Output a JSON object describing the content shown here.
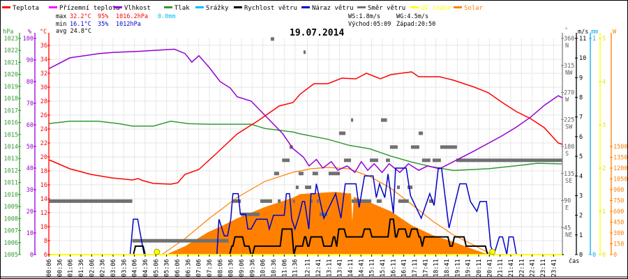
{
  "legend": [
    {
      "label": "Teplota",
      "color": "#ff0000"
    },
    {
      "label": "Přízemní teplota",
      "color": "#ff00ff"
    },
    {
      "label": "Vlhkost",
      "color": "#9400d3"
    },
    {
      "label": "Tlak",
      "color": "#339933"
    },
    {
      "label": "Srážky",
      "color": "#00bfff"
    },
    {
      "label": "Rychlost větru",
      "color": "#000000"
    },
    {
      "label": "Náraz větru",
      "color": "#0000cc"
    },
    {
      "label": "Směr větru",
      "color": "#707070"
    },
    {
      "label": "UV index",
      "color": "#ffff00"
    },
    {
      "label": "Solar",
      "color": "#ff8000"
    }
  ],
  "stats": {
    "max_label": "max",
    "max_temp": "32.2°C",
    "max_hum": "95%",
    "max_press": "1016.2hPa",
    "rain": "0.0mm",
    "min_label": "min",
    "min_temp": "16.1°C",
    "min_hum": "35%",
    "min_press": "1012hPa",
    "avg": "avg 24.8°C",
    "ws": "WS:1.8m/s",
    "wg": "WG:4.5m/s",
    "sunrise": "Východ:05:09",
    "sunset": "Západ:20:50"
  },
  "chart_data": {
    "type": "line",
    "title": "19.07.2014",
    "xlabel": "čas",
    "x_tick_labels": [
      "00:06",
      "00:36",
      "01:06",
      "01:36",
      "02:06",
      "02:36",
      "03:06",
      "03:36",
      "04:06",
      "04:36",
      "05:06",
      "05:36",
      "06:06",
      "06:36",
      "07:06",
      "07:36",
      "08:06",
      "08:36",
      "09:06",
      "09:36",
      "10:06",
      "10:36",
      "11:06",
      "11:36",
      "12:11",
      "12:41",
      "13:11",
      "13:41",
      "14:11",
      "14:41",
      "15:11",
      "15:41",
      "16:11",
      "16:41",
      "17:11",
      "17:41",
      "18:11",
      "18:41",
      "19:11",
      "19:41",
      "20:11",
      "20:41",
      "21:11",
      "21:41",
      "22:11",
      "22:41",
      "23:11",
      "23:41"
    ],
    "x_unit": "hour of day",
    "axes": {
      "pressure": {
        "label": "hPa",
        "range": [
          1005,
          1023
        ],
        "color": "#339933"
      },
      "humidity": {
        "label": "%",
        "range": [
          0,
          100
        ],
        "color": "#9400d3"
      },
      "temperature": {
        "label": "°C",
        "range": [
          6,
          36
        ],
        "color": "#ff0000"
      },
      "direction": {
        "label": "°",
        "range": [
          0,
          360
        ],
        "ticks": [
          [
            45,
            "NE"
          ],
          [
            90,
            "E"
          ],
          [
            135,
            "SE"
          ],
          [
            180,
            "S"
          ],
          [
            225,
            "SW"
          ],
          [
            270,
            "W"
          ],
          [
            315,
            "NW"
          ],
          [
            360,
            "N"
          ]
        ],
        "color": "#707070"
      },
      "wind": {
        "label": "m/s",
        "range": [
          0,
          11
        ],
        "color": "#000000"
      },
      "rain": {
        "label": "mm",
        "range": [
          0,
          1
        ],
        "color": "#00aaee"
      },
      "uv": {
        "label": "",
        "range": [
          0,
          5
        ],
        "color": "#e6e600"
      },
      "solar": {
        "label": "W",
        "range": [
          0,
          1500
        ],
        "step": 150,
        "color": "#ff8000"
      }
    },
    "grid": true,
    "series": {
      "temperature": [
        [
          0.1,
          19.6
        ],
        [
          1.08,
          18.3
        ],
        [
          2.06,
          17.5
        ],
        [
          3.03,
          17.0
        ],
        [
          4.01,
          16.7
        ],
        [
          4.27,
          16.9
        ],
        [
          4.5,
          16.6
        ],
        [
          4.99,
          16.2
        ],
        [
          5.8,
          16.1
        ],
        [
          6.13,
          16.3
        ],
        [
          6.46,
          17.5
        ],
        [
          7.11,
          18.2
        ],
        [
          7.93,
          20.5
        ],
        [
          8.9,
          23.3
        ],
        [
          9.88,
          25.2
        ],
        [
          10.86,
          27.3
        ],
        [
          11.51,
          27.8
        ],
        [
          11.84,
          29.0
        ],
        [
          12.49,
          30.5
        ],
        [
          13.14,
          30.5
        ],
        [
          13.79,
          31.3
        ],
        [
          14.45,
          31.2
        ],
        [
          14.94,
          32.0
        ],
        [
          15.59,
          31.2
        ],
        [
          16.08,
          31.8
        ],
        [
          17.05,
          32.2
        ],
        [
          17.38,
          31.5
        ],
        [
          18.36,
          31.5
        ],
        [
          19.01,
          31.0
        ],
        [
          19.99,
          30.0
        ],
        [
          20.64,
          29.2
        ],
        [
          21.29,
          27.8
        ],
        [
          21.95,
          26.5
        ],
        [
          22.6,
          25.5
        ],
        [
          23.25,
          24.2
        ],
        [
          23.9,
          22.0
        ],
        [
          24.1,
          21.8
        ]
      ],
      "humidity": [
        [
          0.1,
          86
        ],
        [
          0.5,
          88
        ],
        [
          1.08,
          91
        ],
        [
          2.47,
          93
        ],
        [
          3.13,
          93.5
        ],
        [
          4.27,
          94
        ],
        [
          5.97,
          95
        ],
        [
          6.46,
          93
        ],
        [
          6.78,
          89
        ],
        [
          7.11,
          92
        ],
        [
          7.6,
          86.5
        ],
        [
          8.1,
          80
        ],
        [
          8.58,
          77
        ],
        [
          8.9,
          73
        ],
        [
          9.55,
          71
        ],
        [
          10.04,
          66
        ],
        [
          10.53,
          61
        ],
        [
          11.02,
          56
        ],
        [
          11.51,
          49
        ],
        [
          12.0,
          45
        ],
        [
          12.26,
          41
        ],
        [
          12.6,
          44
        ],
        [
          12.9,
          40
        ],
        [
          13.3,
          43
        ],
        [
          13.6,
          39
        ],
        [
          14.04,
          41
        ],
        [
          14.4,
          38
        ],
        [
          14.7,
          43
        ],
        [
          15.0,
          39
        ],
        [
          15.3,
          42
        ],
        [
          15.67,
          38
        ],
        [
          16.0,
          42
        ],
        [
          16.5,
          38
        ],
        [
          16.9,
          42
        ],
        [
          17.38,
          39
        ],
        [
          17.8,
          41
        ],
        [
          18.36,
          39.7
        ],
        [
          19.01,
          43
        ],
        [
          19.99,
          48
        ],
        [
          21.29,
          55
        ],
        [
          21.95,
          59
        ],
        [
          22.6,
          63.5
        ],
        [
          23.25,
          69
        ],
        [
          23.9,
          73.5
        ],
        [
          24.1,
          72.5
        ]
      ],
      "pressure": [
        [
          0.1,
          1015.9
        ],
        [
          1.08,
          1016.1
        ],
        [
          2.4,
          1016.1
        ],
        [
          3.36,
          1015.9
        ],
        [
          4.01,
          1015.7
        ],
        [
          4.99,
          1015.7
        ],
        [
          5.8,
          1016.1
        ],
        [
          6.62,
          1015.9
        ],
        [
          7.6,
          1015.85
        ],
        [
          9.55,
          1015.85
        ],
        [
          10.2,
          1015.5
        ],
        [
          11.51,
          1015.2
        ],
        [
          11.84,
          1015.05
        ],
        [
          13.14,
          1014.6
        ],
        [
          14.12,
          1014.1
        ],
        [
          15.1,
          1013.8
        ],
        [
          16.08,
          1013.2
        ],
        [
          17.05,
          1012.7
        ],
        [
          18.03,
          1012.3
        ],
        [
          19.01,
          1012.0
        ],
        [
          20.64,
          1012.15
        ],
        [
          21.95,
          1012.4
        ],
        [
          22.93,
          1012.6
        ],
        [
          24.1,
          1012.55
        ]
      ],
      "wind_speed": [
        [
          0.1,
          0
        ],
        [
          3.9,
          0
        ],
        [
          4.1,
          0.43
        ],
        [
          4.55,
          0
        ],
        [
          8.5,
          0
        ],
        [
          8.6,
          0.43
        ],
        [
          8.75,
          0.9
        ],
        [
          9.2,
          0.43
        ],
        [
          9.5,
          0
        ],
        [
          9.67,
          0.43
        ],
        [
          10.96,
          1.3
        ],
        [
          11.5,
          0
        ],
        [
          11.6,
          0.43
        ],
        [
          12.0,
          0.9
        ],
        [
          12.15,
          0.43
        ],
        [
          12.3,
          0.9
        ],
        [
          12.9,
          0.43
        ],
        [
          13.35,
          0.9
        ],
        [
          13.5,
          0.43
        ],
        [
          13.6,
          1.3
        ],
        [
          13.95,
          0.9
        ],
        [
          14.8,
          1.3
        ],
        [
          15.15,
          0.9
        ],
        [
          16.0,
          1.8
        ],
        [
          16.25,
          0.9
        ],
        [
          16.4,
          1.3
        ],
        [
          16.8,
          0.9
        ],
        [
          17.0,
          1.3
        ],
        [
          17.35,
          0.9
        ],
        [
          17.5,
          0.43
        ],
        [
          17.6,
          0.9
        ],
        [
          18.8,
          0.43
        ],
        [
          19.0,
          0.9
        ],
        [
          19.55,
          0.43
        ],
        [
          20.55,
          0
        ],
        [
          24.1,
          0
        ]
      ],
      "wind_gust": [
        [
          0.1,
          0
        ],
        [
          3.9,
          0
        ],
        [
          4.05,
          1.8
        ],
        [
          4.25,
          1.8
        ],
        [
          4.55,
          0
        ],
        [
          7.95,
          0
        ],
        [
          8.05,
          1.8
        ],
        [
          8.3,
          0.95
        ],
        [
          8.45,
          0.95
        ],
        [
          8.6,
          1.8
        ],
        [
          8.7,
          3.1
        ],
        [
          8.95,
          3.1
        ],
        [
          9.05,
          2.05
        ],
        [
          9.3,
          2.05
        ],
        [
          9.4,
          1.3
        ],
        [
          9.55,
          1.3
        ],
        [
          9.8,
          1.8
        ],
        [
          10.3,
          1.8
        ],
        [
          10.4,
          1.3
        ],
        [
          10.6,
          2.0
        ],
        [
          11.1,
          2.0
        ],
        [
          11.2,
          3.1
        ],
        [
          11.35,
          3.1
        ],
        [
          11.45,
          1.8
        ],
        [
          11.6,
          1.3
        ],
        [
          11.8,
          2.0
        ],
        [
          11.95,
          2.7
        ],
        [
          12.05,
          2.7
        ],
        [
          12.25,
          1.3
        ],
        [
          12.35,
          3.1
        ],
        [
          12.55,
          3.1
        ],
        [
          12.6,
          3.6
        ],
        [
          12.95,
          1.85
        ],
        [
          13.5,
          3.1
        ],
        [
          13.75,
          1.85
        ],
        [
          13.95,
          3.6
        ],
        [
          14.45,
          3.6
        ],
        [
          14.6,
          2.4
        ],
        [
          14.85,
          4.0
        ],
        [
          15.25,
          4.0
        ],
        [
          15.4,
          2.9
        ],
        [
          15.55,
          3.6
        ],
        [
          15.8,
          2.9
        ],
        [
          15.95,
          4.1
        ],
        [
          16.2,
          2.1
        ],
        [
          16.3,
          4.4
        ],
        [
          16.8,
          4.4
        ],
        [
          17.0,
          3.0
        ],
        [
          17.5,
          1.85
        ],
        [
          17.9,
          3.1
        ],
        [
          18.1,
          2.5
        ],
        [
          18.3,
          4.4
        ],
        [
          18.45,
          4.4
        ],
        [
          18.8,
          1.35
        ],
        [
          19.1,
          2.7
        ],
        [
          19.3,
          3.6
        ],
        [
          19.6,
          3.6
        ],
        [
          19.8,
          2.7
        ],
        [
          20.1,
          2.2
        ],
        [
          20.25,
          2.7
        ],
        [
          20.55,
          2.7
        ],
        [
          20.75,
          0.43
        ],
        [
          20.9,
          0
        ],
        [
          21.15,
          0.9
        ],
        [
          21.3,
          0.9
        ],
        [
          21.5,
          0
        ],
        [
          21.6,
          0.9
        ],
        [
          21.8,
          0.9
        ],
        [
          21.95,
          0
        ],
        [
          24.1,
          0
        ]
      ],
      "wind_direction": [
        [
          0.1,
          4.0,
          89
        ],
        [
          4.0,
          8.5,
          23
        ],
        [
          8.7,
          9.07,
          89
        ],
        [
          9.07,
          9.95,
          67
        ],
        [
          9.98,
          10.53,
          89
        ],
        [
          10.47,
          10.63,
          359
        ],
        [
          10.63,
          10.86,
          135
        ],
        [
          10.8,
          10.93,
          89
        ],
        [
          11.0,
          11.35,
          157
        ],
        [
          11.35,
          11.5,
          179
        ],
        [
          11.5,
          11.6,
          89
        ],
        [
          11.64,
          11.77,
          112
        ],
        [
          11.77,
          12.0,
          135
        ],
        [
          12.0,
          12.1,
          337
        ],
        [
          12.07,
          12.36,
          112
        ],
        [
          12.33,
          12.4,
          89
        ],
        [
          12.42,
          12.68,
          135
        ],
        [
          12.62,
          12.72,
          89
        ],
        [
          12.75,
          13.11,
          67
        ],
        [
          13.17,
          13.7,
          135
        ],
        [
          13.66,
          13.96,
          202
        ],
        [
          13.89,
          14.22,
          157
        ],
        [
          14.22,
          14.32,
          224
        ],
        [
          14.25,
          15.16,
          89
        ],
        [
          15.1,
          15.49,
          157
        ],
        [
          15.42,
          15.65,
          89
        ],
        [
          15.62,
          15.9,
          224
        ],
        [
          15.85,
          16.04,
          157
        ],
        [
          16.04,
          16.4,
          179
        ],
        [
          16.37,
          16.5,
          112
        ],
        [
          16.43,
          16.92,
          89
        ],
        [
          16.86,
          17.09,
          112
        ],
        [
          17.02,
          17.41,
          179
        ],
        [
          17.38,
          17.58,
          202
        ],
        [
          17.54,
          17.93,
          157
        ],
        [
          17.87,
          18.07,
          89
        ],
        [
          18.03,
          18.42,
          157
        ],
        [
          18.39,
          19.17,
          179
        ],
        [
          19.14,
          24.1,
          157
        ]
      ],
      "solar": [
        [
          5.58,
          0
        ],
        [
          6.46,
          116
        ],
        [
          7.53,
          310
        ],
        [
          8.25,
          406
        ],
        [
          8.9,
          503
        ],
        [
          10.2,
          660
        ],
        [
          11.51,
          790
        ],
        [
          11.84,
          840
        ],
        [
          13.47,
          870
        ],
        [
          14.12,
          850
        ],
        [
          14.22,
          850
        ],
        [
          14.28,
          460
        ],
        [
          14.35,
          800
        ],
        [
          15.1,
          725
        ],
        [
          16.08,
          600
        ],
        [
          17.05,
          406
        ],
        [
          18.03,
          270
        ],
        [
          19.01,
          175
        ],
        [
          19.99,
          68
        ],
        [
          20.64,
          0
        ]
      ],
      "solar_max": [
        [
          5.38,
          0
        ],
        [
          6.46,
          222
        ],
        [
          7.6,
          503
        ],
        [
          8.9,
          793
        ],
        [
          10.2,
          1016
        ],
        [
          11.51,
          1142
        ],
        [
          12.33,
          1190
        ],
        [
          13.14,
          1210
        ],
        [
          14.12,
          1190
        ],
        [
          15.1,
          1084
        ],
        [
          16.08,
          920
        ],
        [
          17.05,
          697
        ],
        [
          18.03,
          465
        ],
        [
          19.01,
          271
        ],
        [
          19.99,
          126
        ],
        [
          20.8,
          0
        ]
      ],
      "uv": [
        [
          0.1,
          0
        ],
        [
          24.1,
          0
        ]
      ],
      "rain": [
        [
          0.1,
          0
        ],
        [
          24.1,
          0
        ]
      ]
    },
    "sun_markers": [
      5.15,
      20.83
    ]
  }
}
